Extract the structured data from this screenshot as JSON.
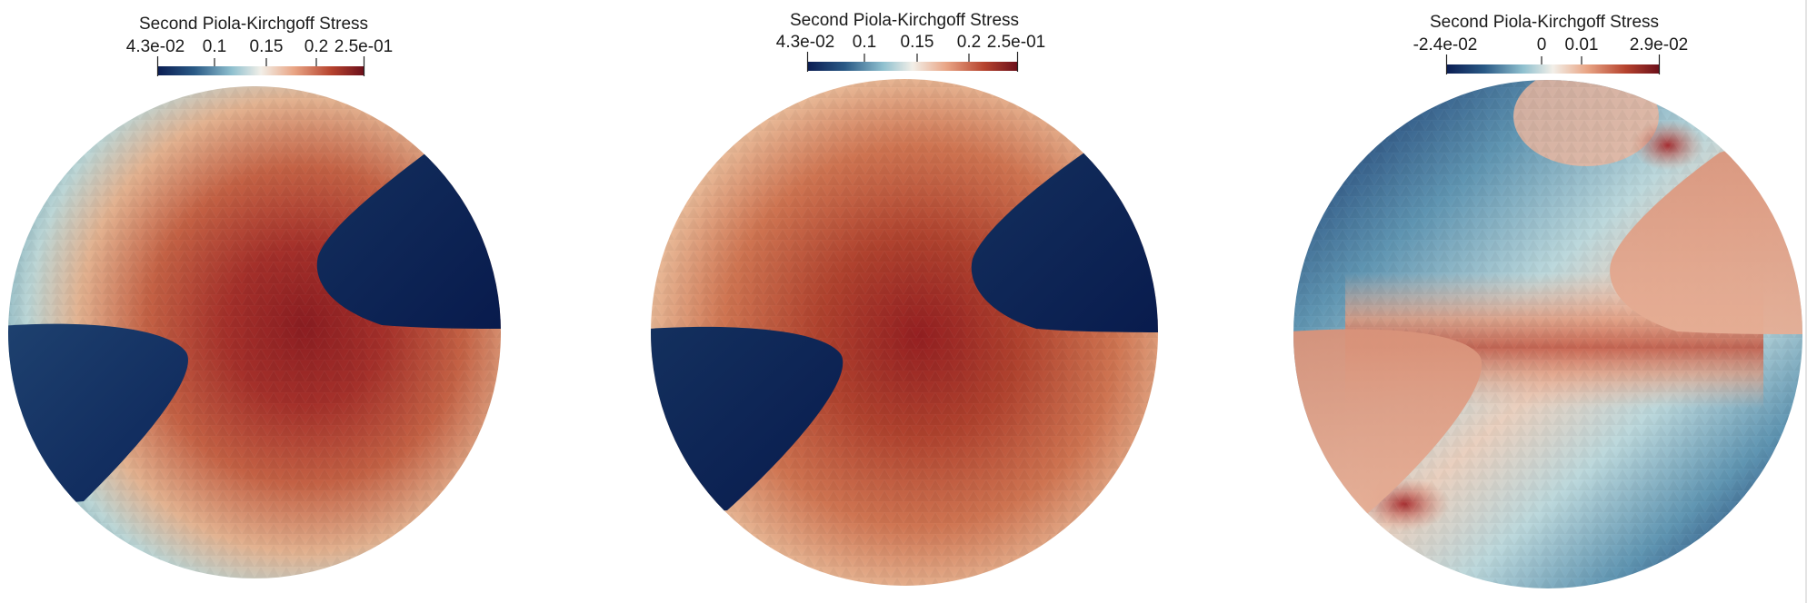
{
  "panels": [
    {
      "colorbar": {
        "title": "Second Piola-Kirchgoff Stress",
        "tick_labels": [
          "4.3e-02",
          "0.1",
          "0.15",
          "0.2",
          "2.5e-01"
        ]
      }
    },
    {
      "colorbar": {
        "title": "Second Piola-Kirchgoff Stress",
        "tick_labels": [
          "4.3e-02",
          "0.1",
          "0.15",
          "0.2",
          "2.5e-01"
        ]
      }
    },
    {
      "colorbar": {
        "title": "Second Piola-Kirchgoff Stress",
        "tick_labels": [
          "-2.4e-02",
          "0",
          "0.01",
          "2.9e-02"
        ]
      }
    }
  ],
  "colormap": {
    "low": "#0a1c52",
    "mid": "#f2efe8",
    "high": "#6b0f1a"
  }
}
